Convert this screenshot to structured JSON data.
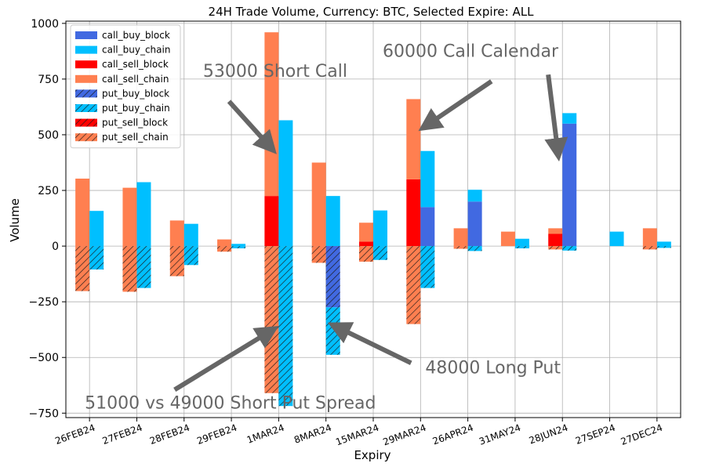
{
  "chart_data": {
    "type": "bar",
    "title": "24H Trade Volume, Currency: BTC, Selected Expire: ALL",
    "xlabel": "Expiry",
    "ylabel": "Volume",
    "ylim": [
      -770,
      1010
    ],
    "yticks": [
      1000,
      750,
      500,
      250,
      0,
      -250,
      -500,
      -750
    ],
    "ytick_labels": [
      "1000",
      "750",
      "500",
      "250",
      "0",
      "−250",
      "−500",
      "−750"
    ],
    "grid": true,
    "legend_position": "top-left",
    "categories": [
      "26FEB24",
      "27FEB24",
      "28FEB24",
      "29FEB24",
      "1MAR24",
      "8MAR24",
      "15MAR24",
      "29MAR24",
      "26APR24",
      "31MAY24",
      "28JUN24",
      "27SEP24",
      "27DEC24"
    ],
    "series": [
      {
        "name": "call_buy_block",
        "group": "buy",
        "direction": "positive",
        "color": "#4169e1",
        "hatch": false,
        "values": [
          0,
          0,
          0,
          0,
          0,
          0,
          0,
          175,
          200,
          0,
          550,
          0,
          0
        ]
      },
      {
        "name": "call_buy_chain",
        "group": "buy",
        "direction": "positive",
        "color": "#00bfff",
        "hatch": false,
        "values": [
          158,
          287,
          100,
          10,
          565,
          225,
          160,
          252,
          53,
          33,
          47,
          65,
          20
        ]
      },
      {
        "name": "call_sell_block",
        "group": "sell",
        "direction": "positive",
        "color": "#ff0000",
        "hatch": false,
        "values": [
          0,
          0,
          0,
          0,
          225,
          0,
          20,
          300,
          0,
          0,
          55,
          0,
          0
        ]
      },
      {
        "name": "call_sell_chain",
        "group": "sell",
        "direction": "positive",
        "color": "#ff7f50",
        "hatch": false,
        "values": [
          303,
          262,
          115,
          30,
          735,
          375,
          85,
          360,
          80,
          65,
          25,
          0,
          80
        ]
      },
      {
        "name": "put_buy_block",
        "group": "buy",
        "direction": "negative",
        "color": "#4169e1",
        "hatch": true,
        "values": [
          0,
          0,
          0,
          0,
          0,
          -275,
          0,
          0,
          0,
          0,
          0,
          0,
          0
        ]
      },
      {
        "name": "put_buy_chain",
        "group": "buy",
        "direction": "negative",
        "color": "#00bfff",
        "hatch": true,
        "values": [
          -105,
          -188,
          -85,
          -10,
          -718,
          -213,
          -62,
          -188,
          -22,
          -10,
          -20,
          0,
          -8
        ]
      },
      {
        "name": "put_sell_block",
        "group": "sell",
        "direction": "negative",
        "color": "#ff0000",
        "hatch": true,
        "values": [
          0,
          0,
          0,
          0,
          0,
          0,
          0,
          0,
          0,
          0,
          0,
          0,
          0
        ]
      },
      {
        "name": "put_sell_chain",
        "group": "sell",
        "direction": "negative",
        "color": "#ff7f50",
        "hatch": true,
        "values": [
          -202,
          -205,
          -135,
          -25,
          -660,
          -75,
          -70,
          -350,
          -12,
          0,
          -15,
          0,
          -15
        ]
      }
    ],
    "annotations": [
      {
        "text": "53000 Short Call",
        "text_anchor": {
          "category": "1MAR24",
          "value": 760,
          "offset": -1.6
        },
        "arrow_from": {
          "category": "1MAR24",
          "value": 650,
          "offset": -1.05
        },
        "arrow_to": {
          "category": "1MAR24",
          "value": 450,
          "offset": -0.2
        }
      },
      {
        "text": "60000 Call Calendar",
        "text_anchor": {
          "category": "15MAR24",
          "value": 850,
          "offset": 0.2
        },
        "arrow_from": {
          "category": "15MAR24",
          "value": 740,
          "offset": 2.5
        },
        "arrow_to": {
          "category": "29MAR24",
          "value": 545,
          "offset": 0.15
        }
      },
      {
        "text": "",
        "arrow_from": {
          "category": "31MAY24",
          "value": 770,
          "offset": 0.7
        },
        "arrow_to": {
          "category": "28JUN24",
          "value": 430,
          "offset": -0.1
        }
      },
      {
        "text": "51000 vs 49000 Short Put Spread",
        "text_anchor": {
          "category": "27FEB24",
          "value": -730,
          "offset": -1.1
        },
        "arrow_from": {
          "category": "28FEB24",
          "value": -645,
          "offset": -0.2
        },
        "arrow_to": {
          "category": "1MAR24",
          "value": -385,
          "offset": -0.2
        }
      },
      {
        "text": "48000 Long Put",
        "text_anchor": {
          "category": "29MAR24",
          "value": -572,
          "offset": 0.1
        },
        "arrow_from": {
          "category": "29MAR24",
          "value": -525,
          "offset": -0.2
        },
        "arrow_to": {
          "category": "8MAR24",
          "value": -365,
          "offset": 0.25
        }
      }
    ]
  }
}
